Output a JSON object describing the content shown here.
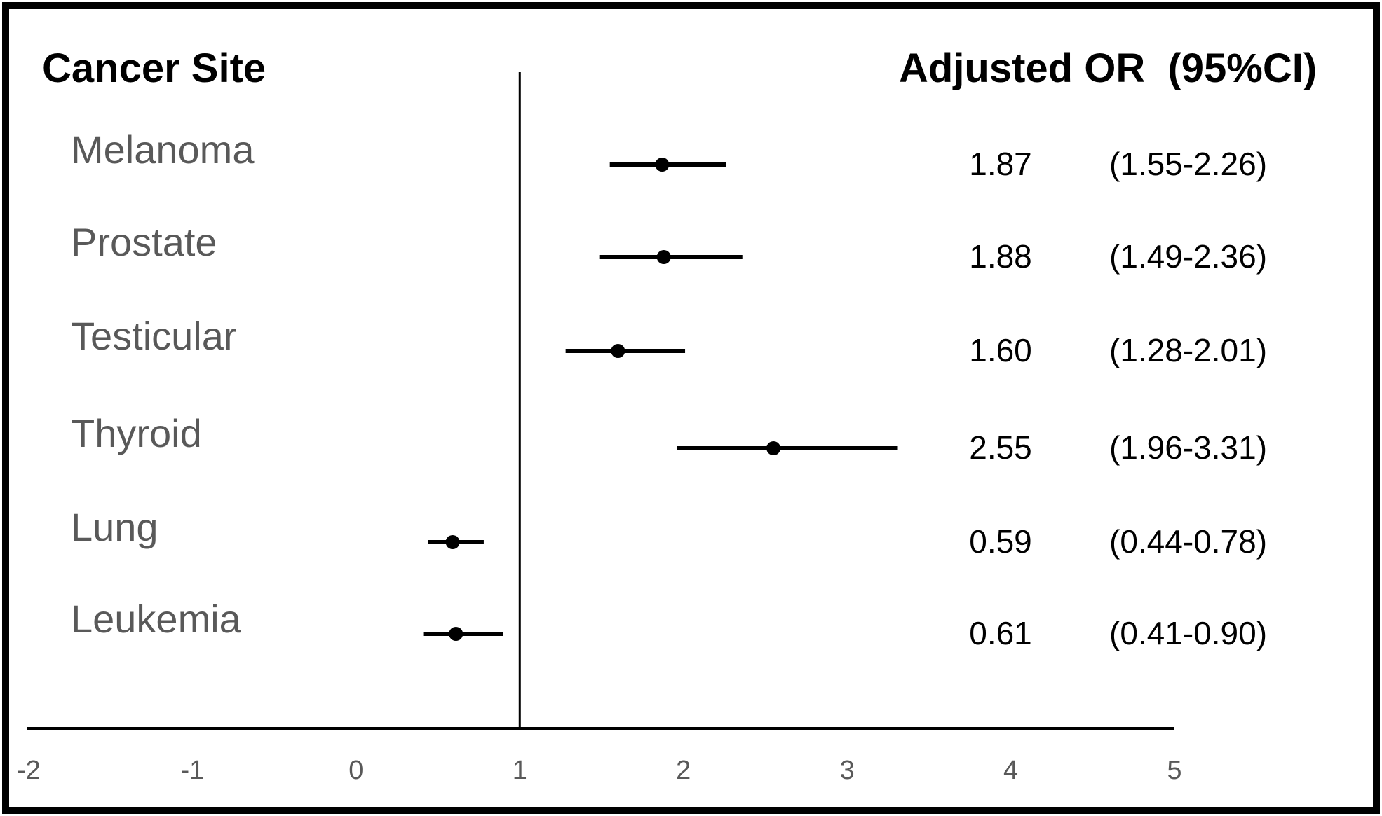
{
  "chart_data": {
    "type": "scatter",
    "subtype": "forest-plot",
    "title": "",
    "headers": {
      "left": "Cancer Site",
      "right": "Adjusted OR  (95%CI)"
    },
    "xlim": [
      -2,
      5
    ],
    "xticks": [
      "-2",
      "-1",
      "0",
      "1",
      "2",
      "3",
      "4",
      "5"
    ],
    "reference_line": 1,
    "rows": [
      {
        "site": "Melanoma",
        "or": 1.87,
        "lo": 1.55,
        "hi": 2.26,
        "or_text": "1.87",
        "ci_text": "(1.55-2.26)"
      },
      {
        "site": "Prostate",
        "or": 1.88,
        "lo": 1.49,
        "hi": 2.36,
        "or_text": "1.88",
        "ci_text": "(1.49-2.36)"
      },
      {
        "site": "Testicular",
        "or": 1.6,
        "lo": 1.28,
        "hi": 2.01,
        "or_text": "1.60",
        "ci_text": "(1.28-2.01)"
      },
      {
        "site": "Thyroid",
        "or": 2.55,
        "lo": 1.96,
        "hi": 3.31,
        "or_text": "2.55",
        "ci_text": "(1.96-3.31)"
      },
      {
        "site": "Lung",
        "or": 0.59,
        "lo": 0.44,
        "hi": 0.78,
        "or_text": "0.59",
        "ci_text": "(0.44-0.78)"
      },
      {
        "site": "Leukemia",
        "or": 0.61,
        "lo": 0.41,
        "hi": 0.9,
        "or_text": "0.61",
        "ci_text": "(0.41-0.90)"
      }
    ],
    "colors": {
      "marker": "#000000",
      "site_label": "#595959",
      "text": "#000000"
    }
  }
}
